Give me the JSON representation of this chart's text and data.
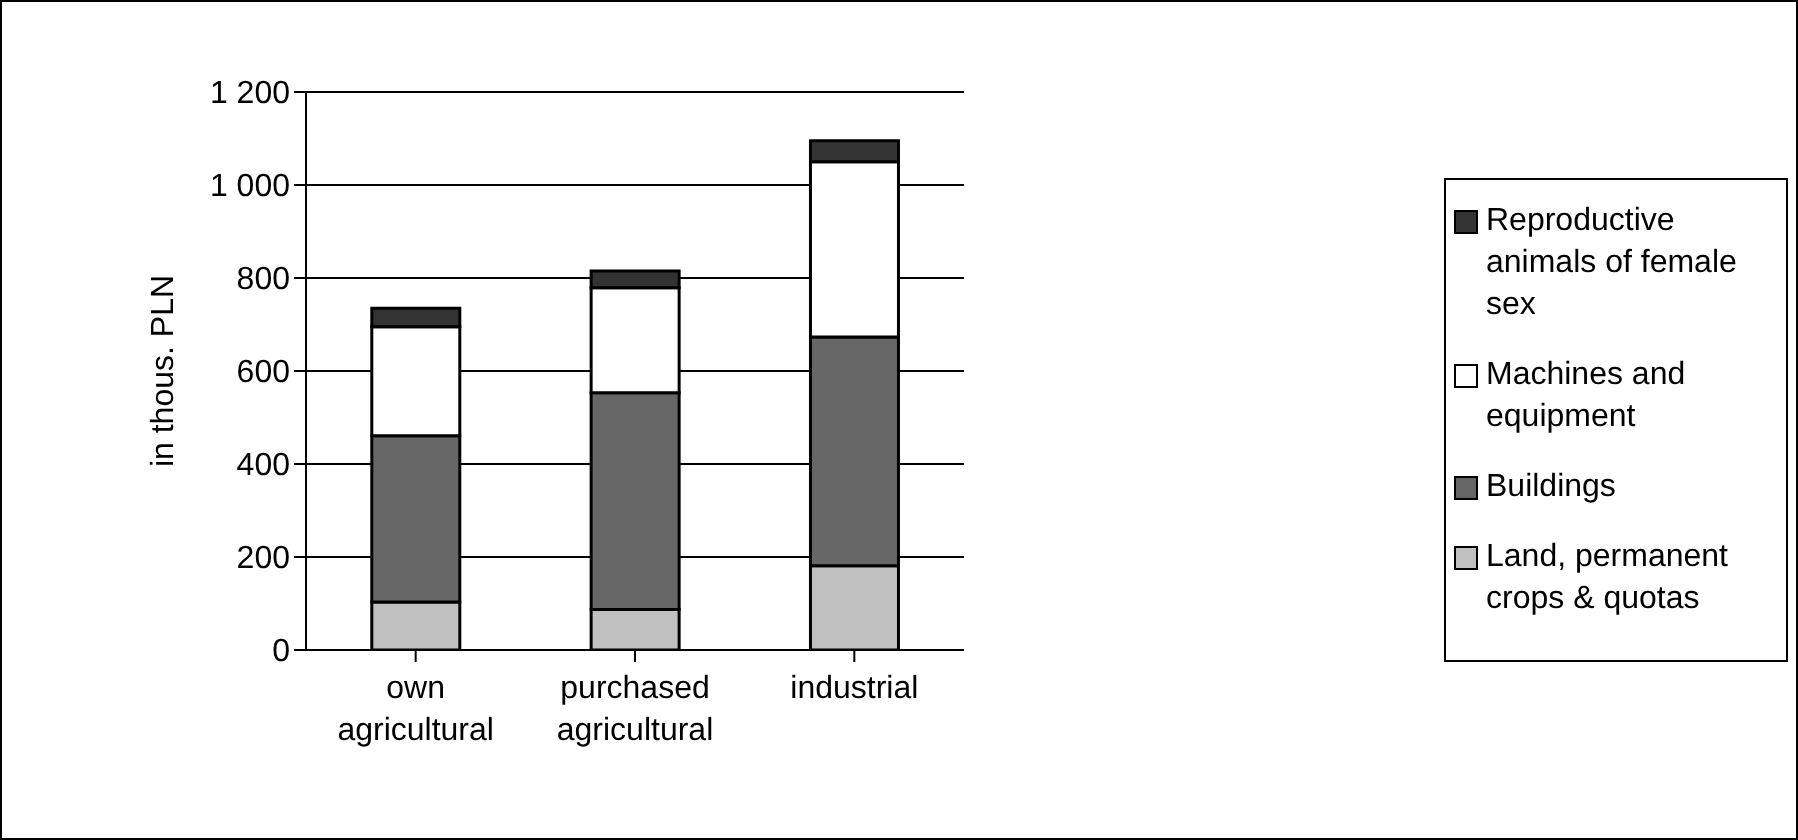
{
  "chart_data": {
    "type": "bar",
    "stacked": true,
    "ylabel": "in thous. PLN",
    "categories": [
      "own agricultural",
      "purchased agricultural",
      "industrial"
    ],
    "series": [
      {
        "name": "Land, permanent crops & quotas",
        "color": "#c0c0c0",
        "values": [
          103,
          87,
          181
        ]
      },
      {
        "name": "Buildings",
        "color": "#666666",
        "values": [
          358,
          466,
          492
        ]
      },
      {
        "name": "Machines and equipment",
        "color": "#ffffff",
        "values": [
          234,
          226,
          377
        ]
      },
      {
        "name": "Reproductive animals of female sex",
        "color": "#333333",
        "values": [
          40,
          36,
          45
        ]
      }
    ],
    "ylim": [
      0,
      1200
    ],
    "yticks": [
      0,
      200,
      400,
      600,
      800,
      {
        "value": 1000,
        "label": "1 000"
      },
      {
        "value": 1200,
        "label": "1 200"
      }
    ],
    "grid": "y",
    "legend": "right"
  }
}
